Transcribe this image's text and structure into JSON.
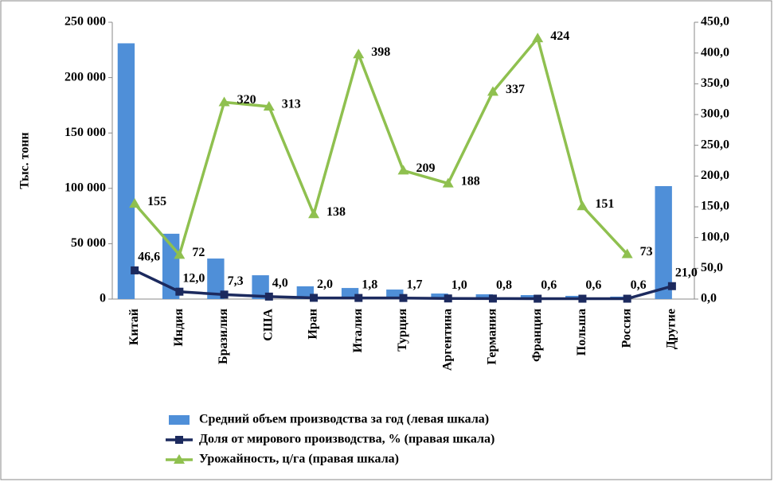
{
  "chart_data": {
    "type": "bar-line",
    "y_label": "Тыс. тонн",
    "categories": [
      "Китай",
      "Индия",
      "Бразилия",
      "США",
      "Иран",
      "Италия",
      "Турция",
      "Аргентина",
      "Германия",
      "Франция",
      "Польша",
      "Россия",
      "Другие"
    ],
    "series": [
      {
        "name": "Средний объем производства за год (левая шкала)",
        "type": "bar",
        "color": "#4f8fd8",
        "axis": "y",
        "values": [
          231000,
          59000,
          36600,
          21500,
          11500,
          10000,
          8600,
          5000,
          4300,
          3600,
          2900,
          2200,
          102000
        ]
      },
      {
        "name": "Доля от мирового производства, % (правая шкала)",
        "type": "line",
        "color": "#1c2a5e",
        "axis": "y2",
        "marker": "square",
        "values": [
          46.6,
          12.0,
          7.3,
          4.0,
          2.0,
          1.8,
          1.7,
          1.0,
          0.8,
          0.6,
          0.6,
          0.6,
          21.0
        ],
        "value_labels": [
          "46,6",
          "12,0",
          "7,3",
          "4,0",
          "2,0",
          "1,8",
          "1,7",
          "1,0",
          "0,8",
          "0,6",
          "0,6",
          "0,6",
          "21,0"
        ]
      },
      {
        "name": "Урожайность, ц/га (правая шкала)",
        "type": "line",
        "color": "#8fc04f",
        "axis": "y2",
        "marker": "triangle",
        "values": [
          155,
          72,
          320,
          313,
          138,
          398,
          209,
          188,
          337,
          424,
          151,
          73,
          null
        ]
      }
    ],
    "ylim": [
      0,
      250000
    ],
    "yticks": [
      {
        "value": 0,
        "label": "0"
      },
      {
        "value": 50000,
        "label": "50 000"
      },
      {
        "value": 100000,
        "label": "100 000"
      },
      {
        "value": 150000,
        "label": "150 000"
      },
      {
        "value": 200000,
        "label": "200 000"
      },
      {
        "value": 250000,
        "label": "250 000"
      }
    ],
    "y2lim": [
      0,
      450
    ],
    "y2ticks": [
      {
        "value": 0,
        "label": "0,0"
      },
      {
        "value": 50,
        "label": "50,0"
      },
      {
        "value": 100,
        "label": "100,0"
      },
      {
        "value": 150,
        "label": "150,0"
      },
      {
        "value": 200,
        "label": "200,0"
      },
      {
        "value": 250,
        "label": "250,0"
      },
      {
        "value": 300,
        "label": "300,0"
      },
      {
        "value": 350,
        "label": "350,0"
      },
      {
        "value": 400,
        "label": "400,0"
      },
      {
        "value": 450,
        "label": "450,0"
      }
    ],
    "legend": "bottom"
  }
}
